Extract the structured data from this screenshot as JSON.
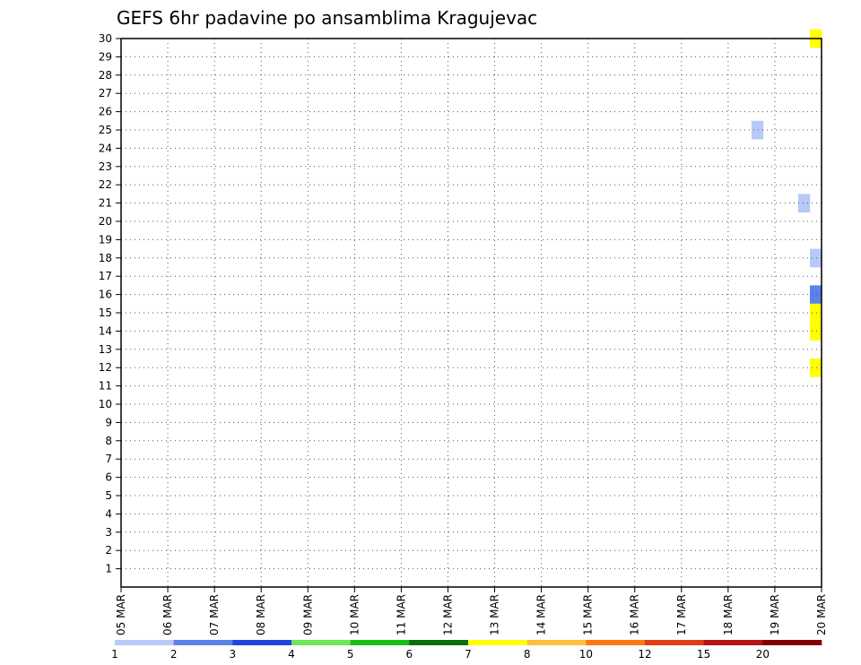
{
  "chart_data": {
    "type": "heatmap",
    "title": "GEFS 6hr padavine po ansamblima Kragujevac",
    "x_tick_labels": [
      "05 MAR",
      "06 MAR",
      "07 MAR",
      "08 MAR",
      "09 MAR",
      "10 MAR",
      "11 MAR",
      "12 MAR",
      "13 MAR",
      "14 MAR",
      "15 MAR",
      "16 MAR",
      "17 MAR",
      "18 MAR",
      "19 MAR",
      "20 MAR"
    ],
    "y_tick_labels": [
      "1",
      "2",
      "3",
      "4",
      "5",
      "6",
      "7",
      "8",
      "9",
      "10",
      "11",
      "12",
      "13",
      "14",
      "15",
      "16",
      "17",
      "18",
      "19",
      "20",
      "21",
      "22",
      "23",
      "24",
      "25",
      "26",
      "27",
      "28",
      "29",
      "30"
    ],
    "x_range_days": [
      0,
      15
    ],
    "y_range": [
      0,
      30
    ],
    "step_hours": 6,
    "grid": "dotted",
    "colorbar": {
      "labels": [
        "1",
        "2",
        "3",
        "4",
        "5",
        "6",
        "7",
        "8",
        "10",
        "12",
        "15",
        "20"
      ],
      "colors": [
        "#b8c8f8",
        "#5a82ea",
        "#1e46dc",
        "#6ee65a",
        "#14be14",
        "#0a6e0a",
        "#ffff00",
        "#ffbe3c",
        "#ff7814",
        "#e13c14",
        "#b41414",
        "#820000"
      ]
    },
    "cells": [
      [
        30,
        14.75,
        7
      ],
      [
        30,
        15,
        2
      ],
      [
        30,
        17.5,
        4
      ],
      [
        30,
        18.75,
        2
      ],
      [
        30,
        19,
        6
      ],
      [
        30,
        21.5,
        3
      ],
      [
        30,
        22.5,
        1
      ],
      [
        30,
        22.75,
        3
      ],
      [
        30,
        23.25,
        1
      ],
      [
        30,
        23.5,
        1
      ],
      [
        30,
        23.75,
        6
      ],
      [
        30,
        24,
        1
      ],
      [
        30,
        24.25,
        1
      ],
      [
        30,
        24.75,
        3
      ],
      [
        29,
        17,
        2
      ],
      [
        29,
        18,
        7
      ],
      [
        29,
        21,
        1
      ],
      [
        29,
        21.25,
        5
      ],
      [
        29,
        21.5,
        1
      ],
      [
        29,
        22.5,
        1
      ],
      [
        29,
        22.75,
        1
      ],
      [
        28,
        15,
        3
      ],
      [
        28,
        15.25,
        5
      ],
      [
        28,
        16.5,
        6
      ],
      [
        28,
        18.25,
        1
      ],
      [
        28,
        19.25,
        2
      ],
      [
        28,
        19.5,
        1
      ],
      [
        28,
        22,
        3
      ],
      [
        28,
        22.25,
        3
      ],
      [
        28,
        22.5,
        1
      ],
      [
        27,
        15.5,
        1
      ],
      [
        27,
        15.75,
        6
      ],
      [
        27,
        16,
        2
      ],
      [
        27,
        22.5,
        1
      ],
      [
        27,
        22.75,
        7
      ],
      [
        27,
        23,
        1
      ],
      [
        26,
        15,
        5
      ],
      [
        26,
        15.25,
        5
      ],
      [
        26,
        16.75,
        2
      ],
      [
        26,
        17,
        1
      ],
      [
        26,
        19,
        1
      ],
      [
        26,
        20.75,
        2
      ],
      [
        26,
        21,
        3
      ],
      [
        26,
        21.25,
        2
      ],
      [
        26,
        22.5,
        1
      ],
      [
        25,
        13.5,
        1
      ],
      [
        25,
        15.5,
        1
      ],
      [
        25,
        15.75,
        9
      ],
      [
        25,
        16,
        1
      ],
      [
        25,
        17.75,
        5
      ],
      [
        25,
        19.5,
        1
      ],
      [
        25,
        23.5,
        1
      ],
      [
        25,
        23.75,
        8
      ],
      [
        25,
        24,
        5
      ],
      [
        25,
        24.25,
        1
      ],
      [
        25,
        24.5,
        1
      ],
      [
        24,
        15.25,
        2
      ],
      [
        24,
        15.5,
        2
      ],
      [
        24,
        16.75,
        6
      ],
      [
        24,
        17.75,
        3
      ],
      [
        24,
        20,
        5
      ],
      [
        24,
        22.25,
        5
      ],
      [
        24,
        22.5,
        8
      ],
      [
        24,
        22.75,
        1
      ],
      [
        24,
        23.25,
        1
      ],
      [
        24,
        23.5,
        2
      ],
      [
        24,
        23.75,
        12
      ],
      [
        24,
        24,
        7
      ],
      [
        24,
        24.25,
        3
      ],
      [
        24,
        24.5,
        5
      ],
      [
        23,
        15.25,
        12
      ],
      [
        23,
        15.5,
        5
      ],
      [
        23,
        16.25,
        4
      ],
      [
        23,
        16.5,
        2
      ],
      [
        23,
        16.75,
        6
      ],
      [
        23,
        21,
        2
      ],
      [
        23,
        21.25,
        2
      ],
      [
        23,
        21.5,
        3
      ],
      [
        23,
        21.75,
        5
      ],
      [
        23,
        22,
        1
      ],
      [
        23,
        22.25,
        2
      ],
      [
        23,
        22.5,
        2
      ],
      [
        23,
        22.75,
        1
      ],
      [
        22,
        16.25,
        1
      ],
      [
        22,
        16.5,
        12
      ],
      [
        22,
        17.5,
        3
      ],
      [
        22,
        17.75,
        4
      ],
      [
        22,
        19.25,
        2
      ],
      [
        21,
        14.5,
        1
      ],
      [
        21,
        15,
        1
      ],
      [
        21,
        15.75,
        2
      ],
      [
        21,
        16,
        4
      ],
      [
        21,
        16.25,
        1
      ],
      [
        21,
        18,
        1
      ],
      [
        21,
        18.5,
        2
      ],
      [
        21,
        18.75,
        2
      ],
      [
        21,
        19.25,
        3
      ],
      [
        21,
        19.5,
        12
      ],
      [
        21,
        21.75,
        6
      ],
      [
        21,
        22,
        5
      ],
      [
        21,
        22.5,
        2
      ],
      [
        20,
        15.25,
        6
      ],
      [
        20,
        16.5,
        2
      ],
      [
        20,
        16.75,
        2
      ],
      [
        20,
        19.75,
        2
      ],
      [
        20,
        21.75,
        5
      ],
      [
        20,
        22,
        3
      ],
      [
        20,
        23.75,
        6
      ],
      [
        20,
        24,
        3
      ],
      [
        20,
        24.75,
        1
      ],
      [
        19,
        15.25,
        3
      ],
      [
        19,
        15.75,
        2
      ],
      [
        19,
        16,
        5
      ],
      [
        19,
        18.25,
        8
      ],
      [
        19,
        18.5,
        2
      ],
      [
        19,
        24.75,
        1
      ],
      [
        18,
        14.75,
        1
      ],
      [
        18,
        15.5,
        1
      ],
      [
        18,
        16.25,
        6
      ],
      [
        18,
        17,
        1
      ],
      [
        18,
        18.25,
        2
      ],
      [
        18,
        18.5,
        2
      ],
      [
        18,
        18.75,
        5
      ],
      [
        18,
        19,
        3
      ],
      [
        18,
        22.5,
        1
      ],
      [
        18,
        23.75,
        2
      ],
      [
        17,
        15.25,
        2
      ],
      [
        17,
        15.5,
        2
      ],
      [
        17,
        15.75,
        2
      ],
      [
        17,
        18.5,
        3
      ],
      [
        17,
        18.75,
        1
      ],
      [
        17,
        19.5,
        8
      ],
      [
        17,
        19.75,
        7
      ],
      [
        17,
        20,
        3
      ],
      [
        17,
        20.25,
        9
      ],
      [
        17,
        20.5,
        2
      ],
      [
        17,
        22.25,
        1
      ],
      [
        17,
        22.5,
        6
      ],
      [
        17,
        22.75,
        3
      ],
      [
        17,
        23,
        1
      ],
      [
        17,
        24.5,
        3
      ],
      [
        17,
        24.75,
        1
      ],
      [
        16,
        14.75,
        2
      ],
      [
        16,
        15,
        3
      ],
      [
        16,
        18.25,
        2
      ],
      [
        16,
        22.5,
        1
      ],
      [
        16,
        22.75,
        2
      ],
      [
        15,
        14.75,
        7
      ],
      [
        15,
        15,
        1
      ],
      [
        15,
        16.5,
        1
      ],
      [
        15,
        16.75,
        7
      ],
      [
        15,
        17,
        2
      ],
      [
        15,
        24.5,
        1
      ],
      [
        14,
        14.75,
        7
      ],
      [
        14,
        17,
        2
      ],
      [
        13,
        15.25,
        3
      ],
      [
        13,
        15.5,
        2
      ],
      [
        13,
        15.75,
        5
      ],
      [
        13,
        16,
        2
      ],
      [
        13,
        17.5,
        1
      ],
      [
        13,
        18,
        2
      ],
      [
        13,
        21,
        1
      ],
      [
        13,
        21.75,
        6
      ],
      [
        13,
        22,
        3
      ],
      [
        13,
        22.25,
        1
      ],
      [
        13,
        22.5,
        1
      ],
      [
        13,
        23,
        1
      ],
      [
        13,
        23.25,
        1
      ],
      [
        13,
        23.5,
        1
      ],
      [
        12,
        14.75,
        7
      ],
      [
        12,
        16.5,
        2
      ],
      [
        12,
        18.25,
        6
      ],
      [
        12,
        18.5,
        1
      ],
      [
        11,
        15.25,
        3
      ],
      [
        11,
        15.5,
        3
      ],
      [
        11,
        16.75,
        7
      ],
      [
        11,
        17,
        1
      ],
      [
        11,
        20.25,
        1
      ],
      [
        10,
        15,
        3
      ],
      [
        10,
        16.5,
        3
      ],
      [
        10,
        16.75,
        1
      ],
      [
        10,
        17.25,
        3
      ],
      [
        10,
        17.5,
        8
      ],
      [
        10,
        17.75,
        8
      ],
      [
        10,
        18,
        7
      ],
      [
        10,
        18.25,
        1
      ],
      [
        10,
        23.5,
        5
      ],
      [
        9,
        16.5,
        1
      ],
      [
        9,
        16.75,
        5
      ],
      [
        8,
        15,
        5
      ],
      [
        8,
        17.5,
        2
      ],
      [
        8,
        17.75,
        2
      ],
      [
        8,
        18.25,
        2
      ],
      [
        8,
        18.5,
        7
      ],
      [
        7,
        15.25,
        1
      ],
      [
        7,
        15.5,
        9
      ],
      [
        7,
        15.75,
        1
      ],
      [
        7,
        16.25,
        1
      ],
      [
        7,
        16.5,
        3
      ],
      [
        7,
        16.75,
        1
      ],
      [
        7,
        17,
        2
      ],
      [
        7,
        23.5,
        1
      ],
      [
        7,
        23.75,
        12
      ],
      [
        7,
        24,
        12
      ],
      [
        6,
        18.25,
        1
      ],
      [
        6,
        18.5,
        6
      ],
      [
        6,
        18.75,
        1
      ],
      [
        6,
        20.25,
        5
      ],
      [
        5,
        15.5,
        1
      ],
      [
        5,
        18,
        1
      ],
      [
        5,
        18.25,
        9
      ],
      [
        5,
        20,
        2
      ],
      [
        5,
        22.25,
        1
      ],
      [
        4,
        15.25,
        1
      ],
      [
        4,
        15.5,
        1
      ],
      [
        4,
        18.25,
        12
      ],
      [
        4,
        18.75,
        1
      ],
      [
        4,
        19.25,
        7
      ],
      [
        4,
        22.25,
        1
      ],
      [
        4,
        22.5,
        3
      ],
      [
        4,
        22.75,
        1
      ],
      [
        3,
        15.75,
        3
      ],
      [
        3,
        16,
        3
      ],
      [
        3,
        16.5,
        1
      ],
      [
        3,
        17.25,
        2
      ],
      [
        3,
        19.25,
        5
      ],
      [
        3,
        19.5,
        1
      ],
      [
        3,
        22.5,
        3
      ],
      [
        3,
        23,
        1
      ],
      [
        3,
        23.5,
        1
      ],
      [
        2,
        16.5,
        1
      ],
      [
        2,
        17.25,
        3
      ],
      [
        2,
        18.75,
        3
      ],
      [
        2,
        19.5,
        1
      ],
      [
        2,
        19.75,
        5
      ],
      [
        2,
        20,
        6
      ],
      [
        2,
        22.75,
        2
      ],
      [
        1,
        15.25,
        3
      ],
      [
        1,
        15.5,
        6
      ],
      [
        1,
        15.75,
        3
      ],
      [
        1,
        16,
        1
      ],
      [
        1,
        16.25,
        2
      ],
      [
        1,
        16.5,
        5
      ],
      [
        1,
        16.75,
        1
      ],
      [
        1,
        17,
        1
      ],
      [
        1,
        19.75,
        3
      ],
      [
        1,
        21.75,
        2
      ],
      [
        0,
        15.5,
        3
      ],
      [
        0,
        16,
        3
      ],
      [
        0,
        18.5,
        1
      ],
      [
        0,
        19,
        1
      ],
      [
        0,
        19.25,
        11
      ],
      [
        0,
        19.5,
        9
      ],
      [
        0,
        19.75,
        2
      ],
      [
        0,
        20,
        1
      ]
    ]
  }
}
